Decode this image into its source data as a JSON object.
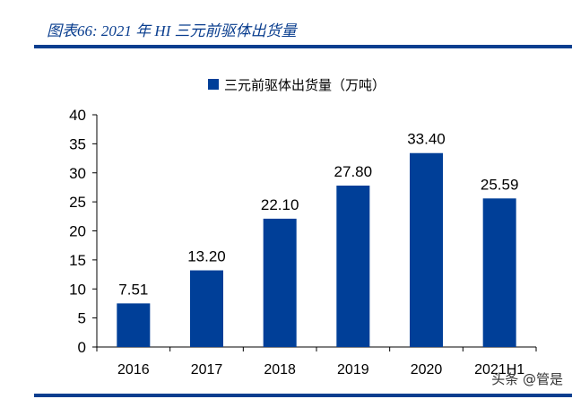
{
  "title": "图表66:  2021 年 HI 三元前驱体出货量",
  "watermark": "头条 @管是",
  "chart_data": {
    "type": "bar",
    "categories": [
      "2016",
      "2017",
      "2018",
      "2019",
      "2020",
      "2021H1"
    ],
    "series": [
      {
        "name": "三元前驱体出货量（万吨）",
        "values": [
          7.51,
          13.2,
          22.1,
          27.8,
          33.4,
          25.59
        ],
        "labels": [
          "7.51",
          "13.20",
          "22.10",
          "27.80",
          "33.40",
          "25.59"
        ]
      }
    ],
    "ylim": [
      0,
      40
    ],
    "yticks": [
      "0",
      "5",
      "10",
      "15",
      "20",
      "25",
      "30",
      "35",
      "40"
    ],
    "legend": "top-center",
    "grid": false,
    "color": "#003f98"
  }
}
